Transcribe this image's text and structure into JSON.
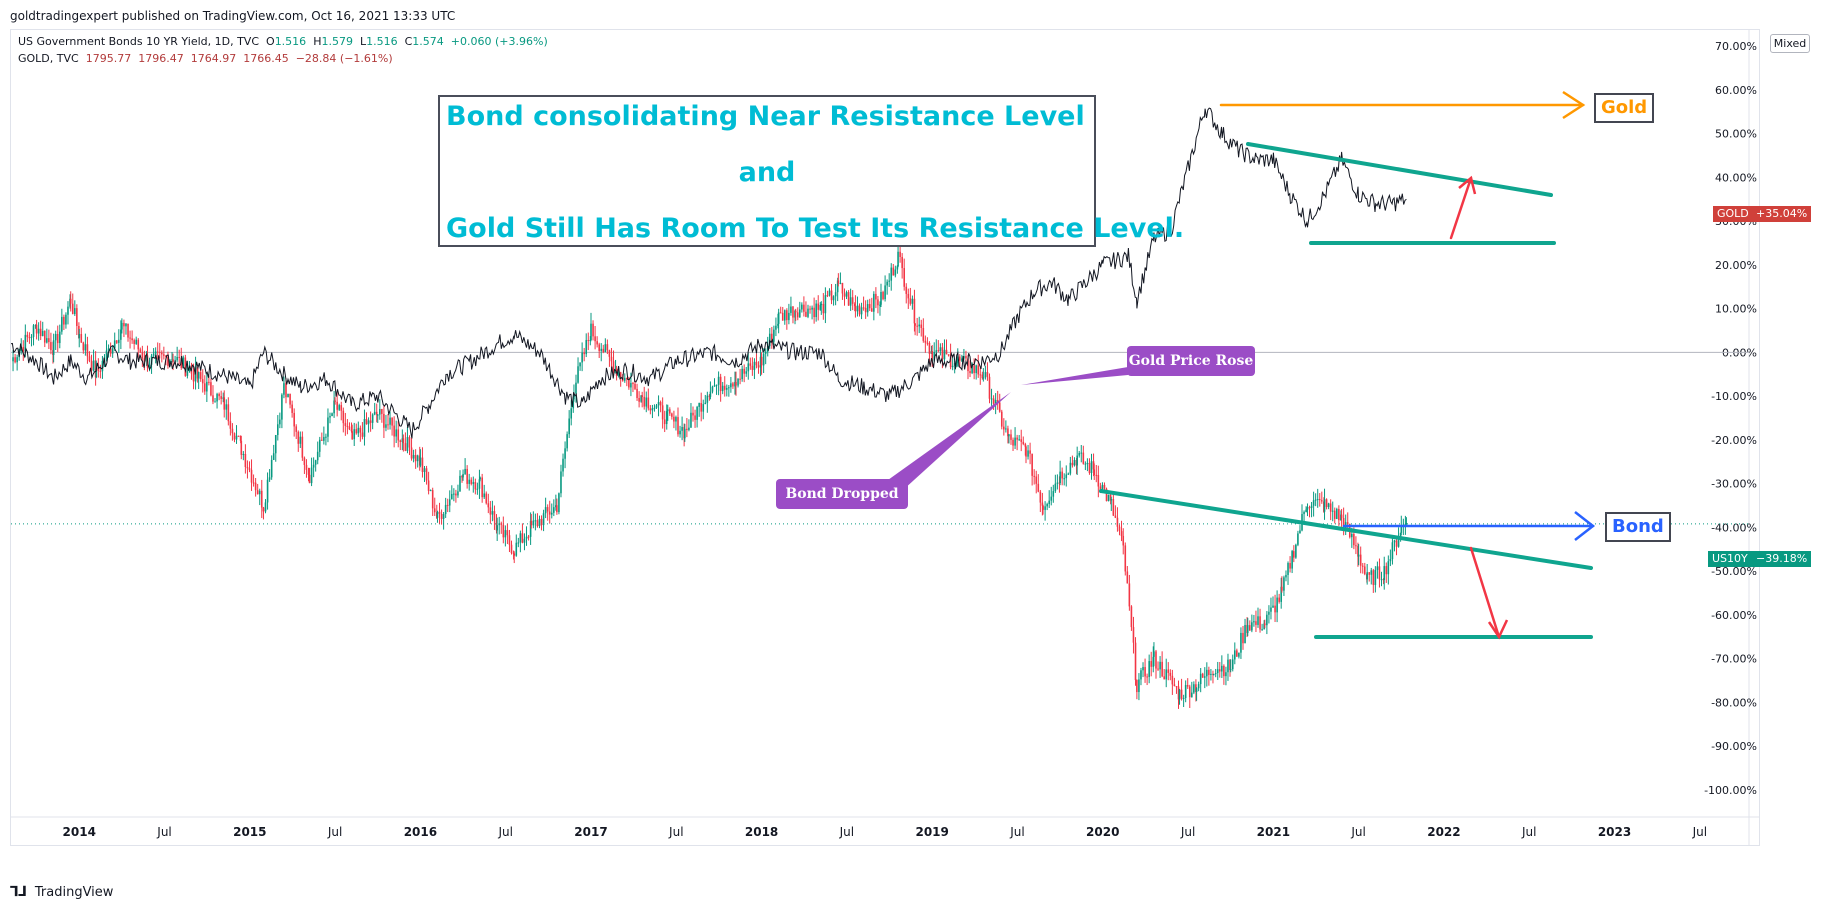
{
  "header": {
    "attribution": "goldtradingexpert published on TradingView.com, Oct 16, 2021 13:33 UTC"
  },
  "legend": {
    "bond": {
      "name": "US Government Bonds 10 YR Yield, 1D, TVC",
      "o_label": "O",
      "o": "1.516",
      "h_label": "H",
      "h": "1.579",
      "l_label": "L",
      "l": "1.516",
      "c_label": "C",
      "c": "1.574",
      "change": "+0.060 (+3.96%)"
    },
    "gold": {
      "name": "GOLD, TVC",
      "o": "1795.77",
      "h": "1796.47",
      "l": "1764.97",
      "c": "1766.45",
      "change": "−28.84 (−1.61%)"
    }
  },
  "scale_mode": "Mixed",
  "annotation_box": {
    "line1": "Bond consolidating Near Resistance Level",
    "line2": "and",
    "line3": "Gold Still Has Room To Test Its Resistance Level."
  },
  "callouts": {
    "gold": "Gold Price Rose",
    "bond": "Bond Dropped"
  },
  "tags": {
    "gold": "Gold",
    "bond": "Bond"
  },
  "price_labels": {
    "gold": {
      "symbol": "GOLD",
      "value": "+35.04%",
      "color": "#d0403a"
    },
    "bond": {
      "symbol": "US10Y",
      "value": "−39.18%",
      "color": "#089981"
    }
  },
  "footer": {
    "logo": "⅂⅃",
    "brand": "TradingView"
  },
  "colors": {
    "up": "#089981",
    "down": "#f23645",
    "gold_line": "#131722",
    "trend": "#0fa58f",
    "orange": "#ff9800",
    "blue": "#2962ff",
    "red_arrow": "#f23645",
    "callout": "#9b4dc6"
  },
  "chart_data": {
    "type": "line",
    "x_ticks": [
      "2014",
      "Jul",
      "2015",
      "Jul",
      "2016",
      "Jul",
      "2017",
      "Jul",
      "2018",
      "Jul",
      "2019",
      "Jul",
      "2020",
      "Jul",
      "2021",
      "Jul",
      "2022",
      "Jul",
      "2023",
      "Jul"
    ],
    "y_ticks": [
      "70.00%",
      "60.00%",
      "50.00%",
      "40.00%",
      "30.00%",
      "20.00%",
      "10.00%",
      "0.00%",
      "-10.00%",
      "-20.00%",
      "-30.00%",
      "-40.00%",
      "-50.00%",
      "-60.00%",
      "-70.00%",
      "-80.00%",
      "-90.00%",
      "-100.00%"
    ],
    "ylim": [
      -100,
      70
    ],
    "xlim": [
      2013.6,
      2023.8
    ],
    "series": [
      {
        "name": "US10Y",
        "style": "candles",
        "points": [
          [
            2013.6,
            -2
          ],
          [
            2013.75,
            6
          ],
          [
            2013.85,
            1
          ],
          [
            2013.95,
            12
          ],
          [
            2014.0,
            4
          ],
          [
            2014.1,
            -5
          ],
          [
            2014.25,
            6
          ],
          [
            2014.4,
            -2
          ],
          [
            2014.55,
            -1
          ],
          [
            2014.7,
            -6
          ],
          [
            2014.85,
            -12
          ],
          [
            2014.95,
            -22
          ],
          [
            2015.08,
            -35
          ],
          [
            2015.2,
            -8
          ],
          [
            2015.35,
            -28
          ],
          [
            2015.5,
            -12
          ],
          [
            2015.6,
            -20
          ],
          [
            2015.75,
            -14
          ],
          [
            2015.9,
            -20
          ],
          [
            2016.0,
            -25
          ],
          [
            2016.1,
            -38
          ],
          [
            2016.25,
            -28
          ],
          [
            2016.35,
            -30
          ],
          [
            2016.45,
            -40
          ],
          [
            2016.55,
            -45
          ],
          [
            2016.65,
            -40
          ],
          [
            2016.8,
            -35
          ],
          [
            2016.9,
            -8
          ],
          [
            2017.0,
            5
          ],
          [
            2017.15,
            -4
          ],
          [
            2017.3,
            -10
          ],
          [
            2017.45,
            -15
          ],
          [
            2017.55,
            -18
          ],
          [
            2017.7,
            -8
          ],
          [
            2017.85,
            -6
          ],
          [
            2018.0,
            -2
          ],
          [
            2018.1,
            8
          ],
          [
            2018.2,
            10
          ],
          [
            2018.35,
            10
          ],
          [
            2018.45,
            15
          ],
          [
            2018.55,
            10
          ],
          [
            2018.7,
            12
          ],
          [
            2018.8,
            22
          ],
          [
            2018.9,
            8
          ],
          [
            2019.0,
            0
          ],
          [
            2019.15,
            -2
          ],
          [
            2019.3,
            -5
          ],
          [
            2019.45,
            -20
          ],
          [
            2019.55,
            -22
          ],
          [
            2019.65,
            -35
          ],
          [
            2019.75,
            -28
          ],
          [
            2019.85,
            -24
          ],
          [
            2019.95,
            -27
          ],
          [
            2020.05,
            -35
          ],
          [
            2020.12,
            -45
          ],
          [
            2020.2,
            -76
          ],
          [
            2020.3,
            -70
          ],
          [
            2020.45,
            -78
          ],
          [
            2020.55,
            -76
          ],
          [
            2020.65,
            -72
          ],
          [
            2020.75,
            -72
          ],
          [
            2020.85,
            -62
          ],
          [
            2020.95,
            -62
          ],
          [
            2021.05,
            -55
          ],
          [
            2021.12,
            -45
          ],
          [
            2021.2,
            -34
          ],
          [
            2021.3,
            -35
          ],
          [
            2021.4,
            -38
          ],
          [
            2021.5,
            -46
          ],
          [
            2021.55,
            -52
          ],
          [
            2021.65,
            -50
          ],
          [
            2021.75,
            -40
          ],
          [
            2021.78,
            -39
          ]
        ]
      },
      {
        "name": "GOLD",
        "style": "line",
        "points": [
          [
            2013.6,
            2
          ],
          [
            2013.75,
            -2
          ],
          [
            2013.85,
            -6
          ],
          [
            2013.95,
            -2
          ],
          [
            2014.05,
            -6
          ],
          [
            2014.2,
            0
          ],
          [
            2014.3,
            -2
          ],
          [
            2014.45,
            -2
          ],
          [
            2014.6,
            -2
          ],
          [
            2014.75,
            -4
          ],
          [
            2014.9,
            -6
          ],
          [
            2015.0,
            -8
          ],
          [
            2015.08,
            0
          ],
          [
            2015.2,
            -5
          ],
          [
            2015.3,
            -8
          ],
          [
            2015.45,
            -6
          ],
          [
            2015.6,
            -12
          ],
          [
            2015.75,
            -10
          ],
          [
            2015.95,
            -18
          ],
          [
            2016.05,
            -12
          ],
          [
            2016.15,
            -5
          ],
          [
            2016.3,
            -2
          ],
          [
            2016.45,
            2
          ],
          [
            2016.55,
            4
          ],
          [
            2016.7,
            0
          ],
          [
            2016.85,
            -10
          ],
          [
            2016.95,
            -12
          ],
          [
            2017.05,
            -6
          ],
          [
            2017.2,
            -4
          ],
          [
            2017.35,
            -6
          ],
          [
            2017.5,
            -2
          ],
          [
            2017.6,
            -1
          ],
          [
            2017.7,
            0
          ],
          [
            2017.85,
            -2
          ],
          [
            2018.0,
            2
          ],
          [
            2018.1,
            1
          ],
          [
            2018.2,
            0
          ],
          [
            2018.35,
            0
          ],
          [
            2018.45,
            -6
          ],
          [
            2018.6,
            -8
          ],
          [
            2018.75,
            -10
          ],
          [
            2018.9,
            -6
          ],
          [
            2019.0,
            -2
          ],
          [
            2019.15,
            -2
          ],
          [
            2019.3,
            -2
          ],
          [
            2019.4,
            0
          ],
          [
            2019.5,
            8
          ],
          [
            2019.6,
            14
          ],
          [
            2019.7,
            16
          ],
          [
            2019.8,
            12
          ],
          [
            2019.9,
            16
          ],
          [
            2020.0,
            20
          ],
          [
            2020.15,
            22
          ],
          [
            2020.2,
            12
          ],
          [
            2020.3,
            26
          ],
          [
            2020.4,
            28
          ],
          [
            2020.5,
            42
          ],
          [
            2020.6,
            56
          ],
          [
            2020.7,
            50
          ],
          [
            2020.8,
            46
          ],
          [
            2020.9,
            44
          ],
          [
            2021.0,
            44
          ],
          [
            2021.1,
            36
          ],
          [
            2021.2,
            30
          ],
          [
            2021.3,
            36
          ],
          [
            2021.4,
            44
          ],
          [
            2021.5,
            36
          ],
          [
            2021.6,
            34
          ],
          [
            2021.7,
            34
          ],
          [
            2021.78,
            35
          ]
        ]
      }
    ]
  }
}
